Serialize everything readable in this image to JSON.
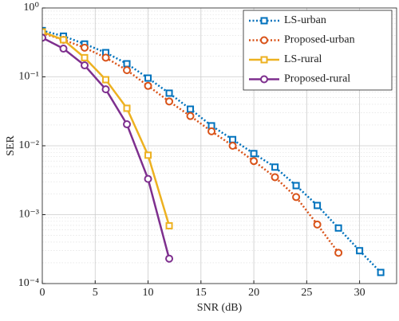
{
  "chart_data": {
    "type": "line",
    "x_label": "SNR (dB)",
    "y_label": "SER",
    "log_y": true,
    "grid": true,
    "legend": "top-right",
    "xlim": [
      0,
      33.5
    ],
    "xticks": [
      0,
      5,
      10,
      15,
      20,
      25,
      30
    ],
    "ylim": [
      0.0001,
      1
    ],
    "yticks": [
      {
        "value": 0.0001,
        "label": "10⁻⁴"
      },
      {
        "value": 0.001,
        "label": "10⁻³"
      },
      {
        "value": 0.01,
        "label": "10⁻²"
      },
      {
        "value": 0.1,
        "label": "10⁻¹"
      },
      {
        "value": 1,
        "label": "10⁰"
      }
    ],
    "series": [
      {
        "name": "LS-urban",
        "color": "#0072BD",
        "marker": "square",
        "dash": "dotted",
        "x": [
          0,
          2,
          4,
          6,
          8,
          10,
          12,
          14,
          16,
          18,
          20,
          22,
          24,
          26,
          28,
          30,
          32
        ],
        "values": [
          0.47,
          0.39,
          0.3,
          0.225,
          0.155,
          0.096,
          0.058,
          0.034,
          0.0195,
          0.0123,
          0.0077,
          0.0049,
          0.00264,
          0.00136,
          0.00064,
          0.0003,
          0.000145
        ]
      },
      {
        "name": "Proposed-urban",
        "color": "#D95319",
        "marker": "circle",
        "dash": "dotted",
        "x": [
          0,
          2,
          4,
          6,
          8,
          10,
          12,
          14,
          16,
          18,
          20,
          22,
          24,
          26,
          28
        ],
        "values": [
          0.43,
          0.345,
          0.265,
          0.19,
          0.125,
          0.074,
          0.044,
          0.027,
          0.0162,
          0.01,
          0.006,
          0.0035,
          0.0018,
          0.00072,
          0.00028
        ]
      },
      {
        "name": "LS-rural",
        "color": "#EDB120",
        "marker": "square",
        "dash": "solid",
        "x": [
          0,
          2,
          4,
          6,
          8,
          10,
          12
        ],
        "values": [
          0.45,
          0.345,
          0.19,
          0.091,
          0.035,
          0.0073,
          0.00069
        ]
      },
      {
        "name": "Proposed-rural",
        "color": "#7E2F8E",
        "marker": "circle",
        "dash": "solid",
        "x": [
          0,
          2,
          4,
          6,
          8,
          10,
          12
        ],
        "values": [
          0.37,
          0.257,
          0.147,
          0.066,
          0.0205,
          0.0033,
          0.00023
        ]
      }
    ]
  }
}
